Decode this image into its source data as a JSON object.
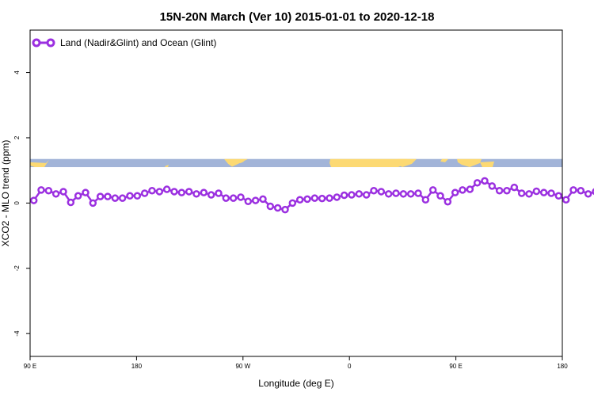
{
  "chart_data": {
    "type": "line",
    "title": "15N-20N March (Ver 10)   2015-01-01 to 2020-12-18",
    "xlabel": "Longitude (deg E)",
    "ylabel": "XCO2 - MLO trend (ppm)",
    "xlim": [
      90,
      450
    ],
    "ylim": [
      -4.7,
      5.3
    ],
    "x_ticks": [
      {
        "value": 90,
        "label": "90 E"
      },
      {
        "value": 180,
        "label": "180"
      },
      {
        "value": 270,
        "label": "90 W"
      },
      {
        "value": 360,
        "label": "0"
      },
      {
        "value": 450,
        "label": "90 E"
      },
      {
        "value": 540,
        "label": "180"
      }
    ],
    "y_ticks": [
      {
        "value": -4,
        "label": "-4"
      },
      {
        "value": -2,
        "label": "-2"
      },
      {
        "value": 0,
        "label": "0"
      },
      {
        "value": 2,
        "label": "2"
      },
      {
        "value": 4,
        "label": "4"
      }
    ],
    "x_axis_max": 540,
    "grid": false,
    "legend_position": "top-left",
    "series": [
      {
        "name": "Land (Nadir&Glint) and Ocean (Glint)",
        "color": "#9b30e0",
        "marker": "open-circle",
        "x_start": 92.5,
        "x_step": 5,
        "values": [
          0.08,
          0.4,
          0.38,
          0.28,
          0.35,
          0.02,
          0.22,
          0.32,
          0.0,
          0.2,
          0.2,
          0.15,
          0.15,
          0.22,
          0.22,
          0.3,
          0.38,
          0.35,
          0.42,
          0.35,
          0.32,
          0.35,
          0.28,
          0.32,
          0.25,
          0.3,
          0.15,
          0.15,
          0.18,
          0.05,
          0.08,
          0.12,
          -0.1,
          -0.15,
          -0.2,
          0.0,
          0.1,
          0.12,
          0.15,
          0.14,
          0.15,
          0.18,
          0.24,
          0.25,
          0.28,
          0.25,
          0.38,
          0.35,
          0.28,
          0.3,
          0.28,
          0.28,
          0.3,
          0.1,
          0.4,
          0.22,
          0.04,
          0.32,
          0.4,
          0.42,
          0.62,
          0.68,
          0.52,
          0.38,
          0.38,
          0.48,
          0.3,
          0.28,
          0.36,
          0.32,
          0.3,
          0.22,
          0.1,
          0.4,
          0.38,
          0.28,
          0.35,
          0.02,
          0.22,
          0.32,
          0.0,
          0.2,
          0.2,
          0.15,
          0.15,
          0.22,
          0.22,
          0.3,
          0.38,
          0.35
        ]
      }
    ],
    "land_band": {
      "y_bottom": 1.1,
      "y_top": 1.35,
      "ocean_color": "#a2b4d8",
      "land_color": "#fcd973"
    }
  }
}
